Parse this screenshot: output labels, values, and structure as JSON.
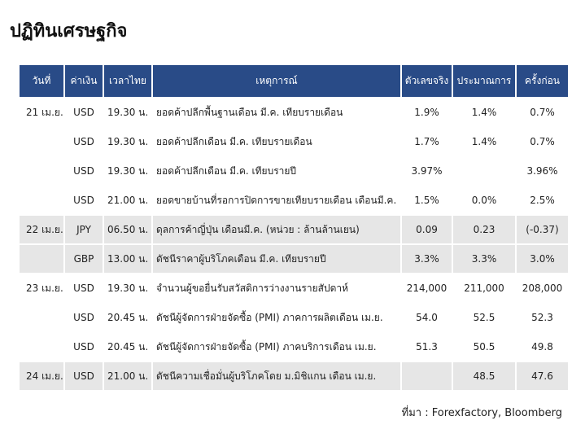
{
  "title": "ปฏิทินเศรษฐกิจ",
  "table": {
    "headers": [
      "วันที่",
      "ค่าเงิน",
      "เวลาไทย",
      "เหตุการณ์",
      "ตัวเลขจริง",
      "ประมาณการ",
      "ครั้งก่อน"
    ],
    "groups": [
      {
        "date": "21 เม.ย.",
        "rows": [
          [
            "USD",
            "19.30 น.",
            "ยอดค้าปลีกพื้นฐานเดือน มี.ค. เทียบรายเดือน",
            "1.9%",
            "1.4%",
            "0.7%"
          ],
          [
            "USD",
            "19.30 น.",
            "ยอดค้าปลีกเดือน มี.ค. เทียบรายเดือน",
            "1.7%",
            "1.4%",
            "0.7%"
          ],
          [
            "USD",
            "19.30 น.",
            "ยอดค้าปลีกเดือน มี.ค. เทียบรายปี",
            "3.97%",
            null,
            "3.96%"
          ],
          [
            "USD",
            "21.00 น.",
            "ยอดขายบ้านที่รอการปิดการขายเทียบรายเดือน เดือนมี.ค.",
            "1.5%",
            "0.0%",
            "2.5%"
          ]
        ]
      },
      {
        "date": "22 เม.ย.",
        "rows": [
          [
            "JPY",
            "06.50 น.",
            "ดุลการค้าญี่ปุ่น เดือนมี.ค. (หน่วย : ล้านล้านเยน)",
            "0.09",
            "0.23",
            "(-0.37)"
          ],
          [
            "GBP",
            "13.00 น.",
            "ดัชนีราคาผู้บริโภคเดือน มี.ค. เทียบรายปี",
            "3.3%",
            "3.3%",
            "3.0%"
          ]
        ]
      },
      {
        "date": "23 เม.ย.",
        "rows": [
          [
            "USD",
            "19.30 น.",
            "จำนวนผู้ขอยื่นรับสวัสดิการว่างงานรายสัปดาห์",
            "214,000",
            "211,000",
            "208,000"
          ],
          [
            "USD",
            "20.45 น.",
            "ดัชนีผู้จัดการฝ่ายจัดซื้อ (PMI) ภาคการผลิตเดือน เม.ย.",
            "54.0",
            "52.5",
            "52.3"
          ],
          [
            "USD",
            "20.45 น.",
            "ดัชนีผู้จัดการฝ่ายจัดซื้อ (PMI) ภาคบริการเดือน เม.ย.",
            "51.3",
            "50.5",
            "49.8"
          ]
        ]
      },
      {
        "date": "24 เม.ย.",
        "rows": [
          [
            "USD",
            "21.00 น.",
            "ดัชนีความเชื่อมั่นผู้บริโภคโดย ม.มิชิแกน เดือน เม.ย.",
            null,
            "48.5",
            "47.6"
          ]
        ]
      }
    ]
  },
  "source": "ที่มา : Forexfactory, Bloomberg"
}
